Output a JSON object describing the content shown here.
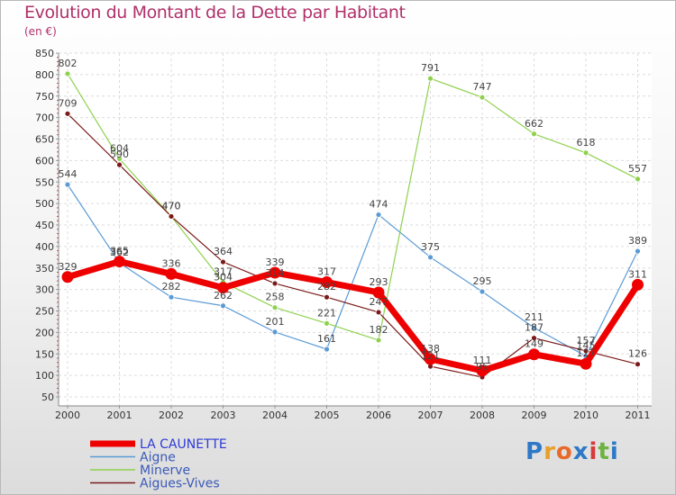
{
  "title": "Evolution du Montant de la Dette par Habitant",
  "subtitle": "(en €)",
  "logo": {
    "text": "Proxiti",
    "letters": [
      "P",
      "r",
      "o",
      "x",
      "i",
      "t",
      "i"
    ],
    "colors": [
      "#2e79c7",
      "#e8a02a",
      "#e86a2a",
      "#2e79c7",
      "#d73a3a",
      "#6cb33f",
      "#2e79c7"
    ]
  },
  "chart_data": {
    "type": "line",
    "x": [
      "2000",
      "2001",
      "2002",
      "2003",
      "2004",
      "2005",
      "2006",
      "2007",
      "2008",
      "2009",
      "2010",
      "2011"
    ],
    "ylim": [
      50,
      850
    ],
    "yticks": [
      50,
      100,
      150,
      200,
      250,
      300,
      350,
      400,
      450,
      500,
      550,
      600,
      650,
      700,
      750,
      800,
      850
    ],
    "grid": true,
    "legend_position": "bottom-left",
    "series": [
      {
        "name": "LA CAUNETTE",
        "color": "#ee0000",
        "values": [
          329,
          365,
          336,
          304,
          339,
          317,
          293,
          138,
          111,
          149,
          127,
          311
        ]
      },
      {
        "name": "Aigne",
        "color": "#5b9bd5",
        "values": [
          544,
          362,
          282,
          262,
          201,
          161,
          474,
          375,
          295,
          211,
          145,
          389
        ]
      },
      {
        "name": "Minerve",
        "color": "#8fd14f",
        "values": [
          802,
          604,
          470,
          317,
          258,
          221,
          182,
          791,
          747,
          662,
          618,
          557
        ]
      },
      {
        "name": "Aigues-Vives",
        "color": "#7b1a1a",
        "values": [
          709,
          590,
          470,
          364,
          314,
          282,
          247,
          121,
          96,
          187,
          157,
          126
        ]
      }
    ],
    "point_labels": [
      [
        "329",
        "365",
        "336",
        "304",
        "339",
        "317",
        "293",
        "138",
        "111",
        "149",
        "127",
        "311"
      ],
      [
        "544",
        "362",
        "282",
        "262",
        "201",
        "161",
        "474",
        "375",
        "295",
        "211",
        "145",
        "389"
      ],
      [
        "802",
        "604",
        "470",
        "317",
        "258",
        "221",
        "182",
        "791",
        "747",
        "662",
        "618",
        "557"
      ],
      [
        "709",
        "590",
        "470",
        "364",
        "314",
        "282",
        "247",
        "121",
        "96",
        "187",
        "157",
        "126"
      ]
    ]
  }
}
